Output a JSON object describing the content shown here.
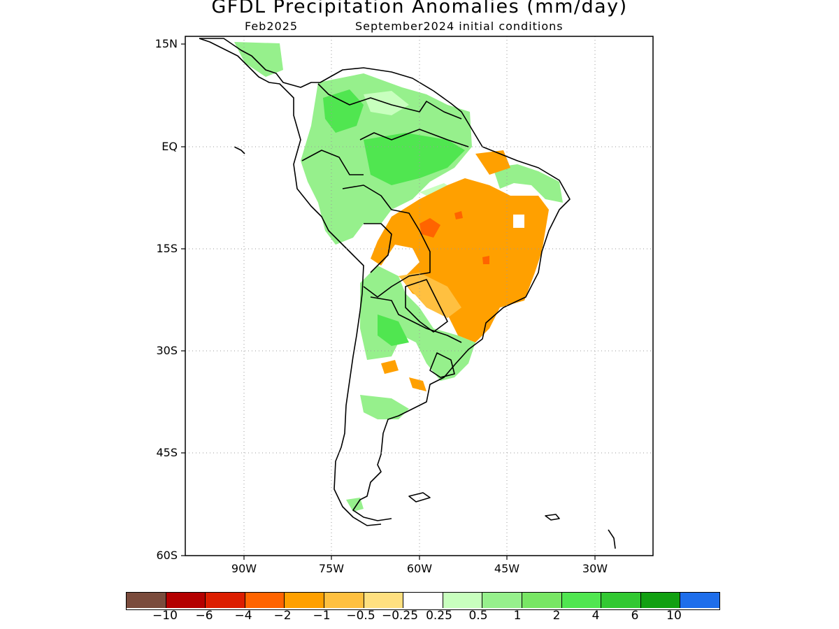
{
  "title": "GFDL Precipitation Anomalies (mm/day)",
  "subtitle_left": "Feb2025",
  "subtitle_right": "September2024 initial conditions",
  "map": {
    "lat_labels": [
      "15N",
      "EQ",
      "15S",
      "30S",
      "45S",
      "60S"
    ],
    "lon_labels": [
      "90W",
      "75W",
      "60W",
      "45W",
      "30W"
    ],
    "extent": {
      "lon": [
        -100,
        -20
      ],
      "lat": [
        -60,
        15
      ]
    }
  },
  "colorbar": {
    "colors": [
      "#7a4b3c",
      "#b40000",
      "#dc1e00",
      "#ff6400",
      "#ffa000",
      "#ffc040",
      "#ffe080",
      "#ffffff",
      "#c8ffbe",
      "#96f08c",
      "#78e664",
      "#50e650",
      "#32c832",
      "#12a012",
      "#1e6eeb"
    ],
    "labels": [
      "−10",
      "−6",
      "−4",
      "−2",
      "−1",
      "−0.5",
      "−0.25",
      "0.25",
      "0.5",
      "1",
      "2",
      "4",
      "6",
      "10"
    ]
  }
}
